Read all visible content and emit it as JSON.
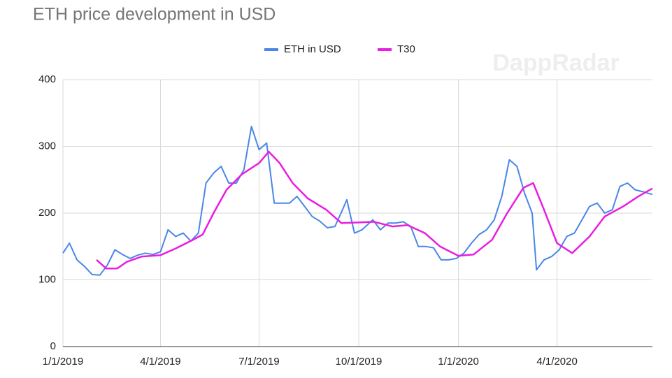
{
  "chart_data": {
    "type": "line",
    "title": "ETH price development in USD",
    "watermark": "DappRadar",
    "xlim": [
      "1/1/2019",
      "6/28/2020"
    ],
    "xticks": [
      "1/1/2019",
      "4/1/2019",
      "7/1/2019",
      "10/1/2019",
      "1/1/2020",
      "4/1/2020"
    ],
    "ylim": [
      0,
      400
    ],
    "yticks": [
      0,
      100,
      200,
      300,
      400
    ],
    "grid": true,
    "legend": "top",
    "series": [
      {
        "name": "ETH in USD",
        "color": "#4a86e8",
        "x": [
          "1/1/2019",
          "1/7/2019",
          "1/14/2019",
          "1/21/2019",
          "1/28/2019",
          "2/4/2019",
          "2/11/2019",
          "2/18/2019",
          "2/25/2019",
          "3/4/2019",
          "3/11/2019",
          "3/18/2019",
          "3/25/2019",
          "4/1/2019",
          "4/8/2019",
          "4/15/2019",
          "4/22/2019",
          "4/29/2019",
          "5/6/2019",
          "5/13/2019",
          "5/20/2019",
          "5/27/2019",
          "6/3/2019",
          "6/10/2019",
          "6/17/2019",
          "6/24/2019",
          "7/1/2019",
          "7/8/2019",
          "7/15/2019",
          "7/22/2019",
          "7/29/2019",
          "8/5/2019",
          "8/12/2019",
          "8/19/2019",
          "8/26/2019",
          "9/2/2019",
          "9/9/2019",
          "9/16/2019",
          "9/20/2019",
          "9/27/2019",
          "10/4/2019",
          "10/14/2019",
          "10/21/2019",
          "10/28/2019",
          "11/4/2019",
          "11/11/2019",
          "11/18/2019",
          "11/25/2019",
          "12/2/2019",
          "12/9/2019",
          "12/16/2019",
          "12/23/2019",
          "12/30/2019",
          "1/6/2020",
          "1/13/2020",
          "1/20/2020",
          "1/27/2020",
          "2/3/2020",
          "2/10/2020",
          "2/17/2020",
          "2/24/2020",
          "3/2/2020",
          "3/9/2020",
          "3/13/2020",
          "3/20/2020",
          "3/27/2020",
          "4/3/2020",
          "4/10/2020",
          "4/17/2020",
          "4/24/2020",
          "5/1/2020",
          "5/8/2020",
          "5/15/2020",
          "5/22/2020",
          "5/29/2020",
          "6/5/2020",
          "6/12/2020",
          "6/19/2020",
          "6/28/2020"
        ],
        "values": [
          140,
          155,
          130,
          120,
          108,
          107,
          122,
          145,
          138,
          132,
          137,
          140,
          138,
          142,
          175,
          165,
          170,
          158,
          170,
          245,
          260,
          270,
          245,
          245,
          265,
          330,
          295,
          305,
          215,
          215,
          215,
          225,
          210,
          195,
          188,
          178,
          180,
          205,
          220,
          170,
          175,
          190,
          175,
          185,
          185,
          187,
          180,
          150,
          150,
          148,
          130,
          130,
          132,
          140,
          155,
          168,
          175,
          190,
          225,
          280,
          270,
          230,
          200,
          115,
          130,
          135,
          145,
          165,
          170,
          190,
          210,
          215,
          200,
          205,
          240,
          245,
          235,
          232,
          228
        ]
      },
      {
        "name": "T30",
        "color": "#e91ee0",
        "x": [
          "2/1/2019",
          "2/10/2019",
          "2/20/2019",
          "3/1/2019",
          "3/15/2019",
          "4/1/2019",
          "4/15/2019",
          "5/1/2019",
          "5/10/2019",
          "5/20/2019",
          "6/1/2019",
          "6/15/2019",
          "7/1/2019",
          "7/10/2019",
          "7/20/2019",
          "8/1/2019",
          "8/15/2019",
          "9/1/2019",
          "9/15/2019",
          "10/1/2019",
          "10/15/2019",
          "11/1/2019",
          "11/15/2019",
          "12/1/2019",
          "12/15/2019",
          "1/1/2020",
          "1/15/2020",
          "2/1/2020",
          "2/15/2020",
          "3/1/2020",
          "3/10/2020",
          "3/20/2020",
          "4/1/2020",
          "4/15/2020",
          "5/1/2020",
          "5/15/2020",
          "6/1/2020",
          "6/15/2020",
          "6/28/2020"
        ],
        "values": [
          130,
          117,
          117,
          127,
          135,
          137,
          147,
          160,
          168,
          200,
          235,
          258,
          275,
          292,
          275,
          245,
          222,
          205,
          185,
          186,
          187,
          180,
          182,
          170,
          150,
          136,
          138,
          160,
          200,
          238,
          245,
          205,
          155,
          140,
          165,
          195,
          210,
          225,
          237
        ]
      }
    ]
  }
}
